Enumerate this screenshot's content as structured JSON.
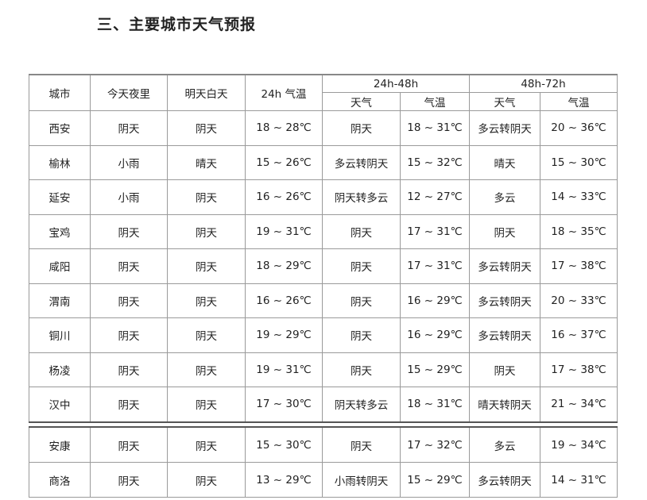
{
  "title": "三、主要城市天气预报",
  "headers": {
    "city": "城市",
    "tonight": "今天夜里",
    "tomorrow": "明天白天",
    "temp24": "24h 气温",
    "g1": "24h-48h",
    "g2": "48h-72h",
    "weather": "天气",
    "temp": "气温"
  },
  "rows": [
    [
      "西安",
      "阴天",
      "阴天",
      "18 ~ 28℃",
      "阴天",
      "18 ~ 31℃",
      "多云转阴天",
      "20 ~ 36℃"
    ],
    [
      "榆林",
      "小雨",
      "晴天",
      "15 ~ 26℃",
      "多云转阴天",
      "15 ~ 32℃",
      "晴天",
      "15 ~ 30℃"
    ],
    [
      "延安",
      "小雨",
      "阴天",
      "16 ~ 26℃",
      "阴天转多云",
      "12 ~ 27℃",
      "多云",
      "14 ~ 33℃"
    ],
    [
      "宝鸡",
      "阴天",
      "阴天",
      "19 ~ 31℃",
      "阴天",
      "17 ~ 31℃",
      "阴天",
      "18 ~ 35℃"
    ],
    [
      "咸阳",
      "阴天",
      "阴天",
      "18 ~ 29℃",
      "阴天",
      "17 ~ 31℃",
      "多云转阴天",
      "17 ~ 38℃"
    ],
    [
      "渭南",
      "阴天",
      "阴天",
      "16 ~ 26℃",
      "阴天",
      "16 ~ 29℃",
      "多云转阴天",
      "20 ~ 33℃"
    ],
    [
      "铜川",
      "阴天",
      "阴天",
      "19 ~ 29℃",
      "阴天",
      "16 ~ 29℃",
      "多云转阴天",
      "16 ~ 37℃"
    ],
    [
      "杨凌",
      "阴天",
      "阴天",
      "19 ~ 31℃",
      "阴天",
      "15 ~ 29℃",
      "阴天",
      "17 ~ 38℃"
    ],
    [
      "汉中",
      "阴天",
      "阴天",
      "17 ~ 30℃",
      "阴天转多云",
      "18 ~ 31℃",
      "晴天转阴天",
      "21 ~ 34℃"
    ]
  ],
  "rows2": [
    [
      "安康",
      "阴天",
      "阴天",
      "15 ~ 30℃",
      "阴天",
      "17 ~ 32℃",
      "多云",
      "19 ~ 34℃"
    ],
    [
      "商洛",
      "阴天",
      "阴天",
      "13 ~ 29℃",
      "小雨转阴天",
      "15 ~ 29℃",
      "多云转阴天",
      "14 ~ 31℃"
    ]
  ]
}
